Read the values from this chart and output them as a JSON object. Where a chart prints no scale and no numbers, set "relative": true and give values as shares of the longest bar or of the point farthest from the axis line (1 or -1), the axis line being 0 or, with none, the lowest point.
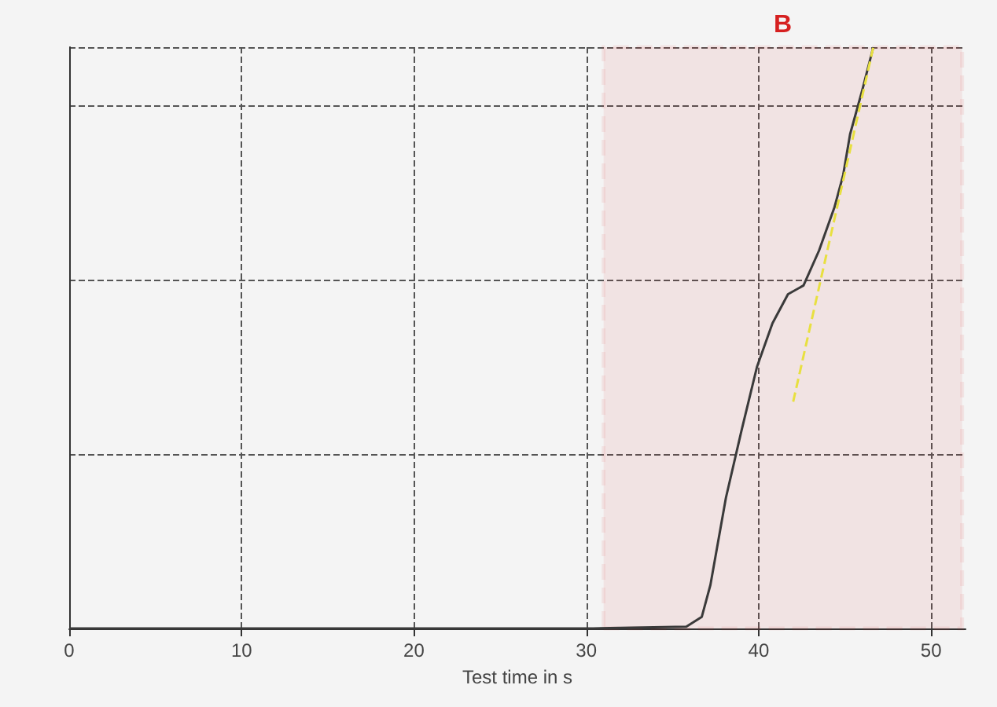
{
  "chart_data": {
    "type": "line",
    "xlabel": "Test time in s",
    "relative": true,
    "xlim": [
      0,
      52
    ],
    "xticks": [
      0,
      10,
      20,
      30,
      40,
      50
    ],
    "grid": true,
    "marker": "none",
    "series": [
      {
        "color": "#3a3a3a",
        "x": [
          0,
          30.4,
          35.8,
          36.7,
          37.2,
          38.1,
          39,
          39.9,
          40.8,
          41.7,
          42.6,
          43.5,
          44.4,
          44.9,
          45.3,
          46,
          46.65
        ],
        "values": [
          0,
          0,
          0.003,
          0.02,
          0.075,
          0.225,
          0.34,
          0.45,
          0.525,
          0.575,
          0.59,
          0.65,
          0.725,
          0.78,
          0.85,
          0.925,
          1
        ]
      },
      {
        "color": "#e8e040",
        "line_style": "dashed",
        "x": [
          42,
          46.65
        ],
        "values": [
          0.39,
          1
        ]
      }
    ],
    "bands": [
      {
        "axis": "x",
        "from": 31,
        "to": 51.8,
        "label": "B",
        "color": "#d62020"
      }
    ]
  }
}
